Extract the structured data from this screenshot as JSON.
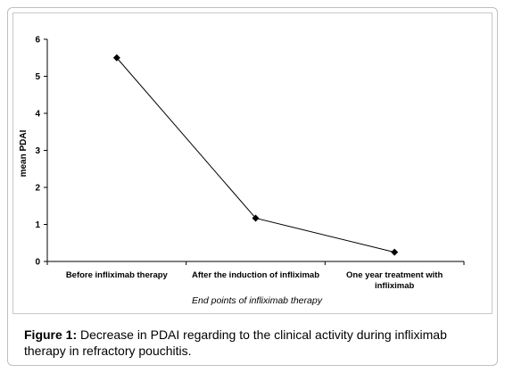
{
  "chart_data": {
    "type": "line",
    "categories": [
      "Before infliximab therapy",
      "After the induction of infliximab",
      "One year treatment with infliximab"
    ],
    "category_lines": [
      [
        "Before infliximab therapy"
      ],
      [
        "After the induction of infliximab"
      ],
      [
        "One year treatment with",
        "infliximab"
      ]
    ],
    "values": [
      5.5,
      1.17,
      0.25
    ],
    "xlabel": "End points of infliximab therapy",
    "ylabel": "mean PDAI",
    "ylim": [
      0,
      6
    ],
    "yticks": [
      "0",
      "1",
      "2",
      "3",
      "4",
      "5",
      "6"
    ],
    "grid": false,
    "marker": "diamond",
    "line_color": "#000000"
  },
  "caption": {
    "lead": "Figure 1:",
    "text": " Decrease in PDAI regarding to the clinical activity during infliximab therapy in refractory pouchitis."
  }
}
